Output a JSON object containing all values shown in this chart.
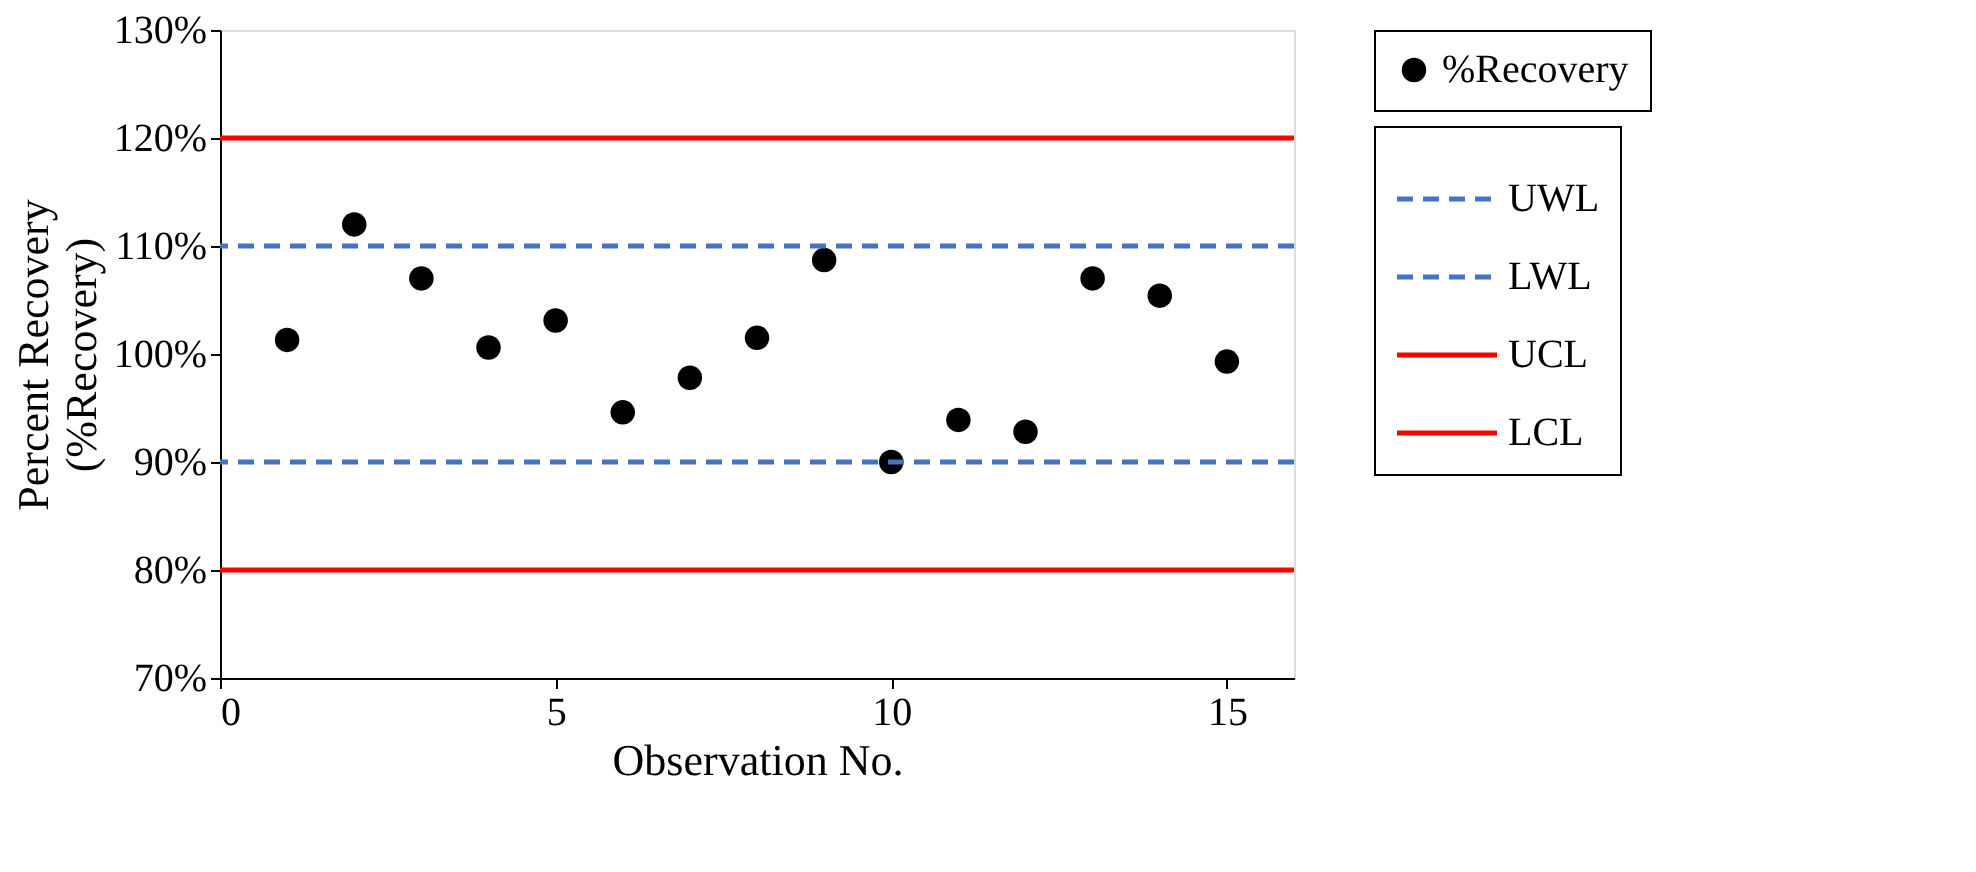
{
  "chart_data": {
    "type": "scatter",
    "xlabel": "Observation No.",
    "ylabel": "Percent Recovery\n(%Recovery)",
    "x": [
      1,
      2,
      3,
      4,
      5,
      6,
      7,
      8,
      9,
      10,
      11,
      12,
      13,
      14,
      15
    ],
    "series": [
      {
        "name": "%Recovery",
        "color": "#000000",
        "values": [
          101.3,
          112.0,
          107.0,
          100.6,
          103.1,
          94.6,
          97.8,
          101.5,
          108.7,
          90.0,
          93.9,
          92.8,
          107.0,
          105.4,
          99.3
        ]
      }
    ],
    "ref_lines": [
      {
        "axis": "y",
        "value": 110,
        "label": "UWL",
        "color": "#4472c4",
        "line_style": "dashed"
      },
      {
        "axis": "y",
        "value": 90,
        "label": "LWL",
        "color": "#4472c4",
        "line_style": "dashed"
      },
      {
        "axis": "y",
        "value": 120,
        "label": "UCL",
        "color": "#ff0000",
        "line_style": "solid"
      },
      {
        "axis": "y",
        "value": 80,
        "label": "LCL",
        "color": "#ff0000",
        "line_style": "solid"
      }
    ],
    "xlim": [
      0,
      16
    ],
    "xticks": [
      0,
      5,
      10,
      15
    ],
    "ylim": [
      70,
      130
    ],
    "yticks": [
      {
        "value": 70,
        "label": "70%"
      },
      {
        "value": 80,
        "label": "80%"
      },
      {
        "value": 90,
        "label": "90%"
      },
      {
        "value": 100,
        "label": "100%"
      },
      {
        "value": 110,
        "label": "110%"
      },
      {
        "value": 120,
        "label": "120%"
      },
      {
        "value": 130,
        "label": "130%"
      }
    ],
    "grid": false,
    "legend": "right",
    "marker": "circle"
  }
}
